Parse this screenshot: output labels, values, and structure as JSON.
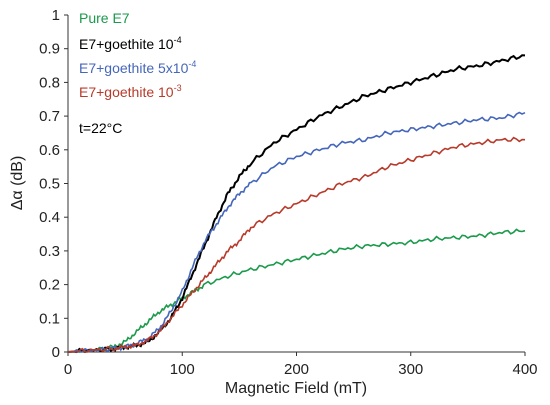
{
  "chart_data": {
    "type": "line",
    "title": "",
    "xlabel": "Magnetic Field (mT)",
    "ylabel": "Δα (dB)",
    "xlim": [
      0,
      400
    ],
    "ylim": [
      0,
      1
    ],
    "x_ticks": [
      "0",
      "100",
      "200",
      "300",
      "400"
    ],
    "y_ticks": [
      "0",
      "0.1",
      "0.2",
      "0.3",
      "0.4",
      "0.5",
      "0.6",
      "0.7",
      "0.8",
      "0.9",
      "1"
    ],
    "grid": false,
    "legend_position": "top-left",
    "annotation": "t=22°C",
    "series": [
      {
        "name": "Pure E7",
        "label_base": "Pure E7",
        "label_sup": "",
        "color": "#1a9a4a",
        "x": [
          0,
          20,
          40,
          50,
          60,
          70,
          80,
          90,
          100,
          110,
          120,
          140,
          160,
          180,
          200,
          220,
          240,
          260,
          280,
          300,
          320,
          340,
          360,
          380,
          400
        ],
        "y": [
          0.0,
          0.005,
          0.015,
          0.03,
          0.06,
          0.09,
          0.12,
          0.14,
          0.16,
          0.18,
          0.2,
          0.225,
          0.245,
          0.26,
          0.275,
          0.29,
          0.305,
          0.315,
          0.32,
          0.325,
          0.335,
          0.34,
          0.345,
          0.355,
          0.36
        ]
      },
      {
        "name": "E7+goethite 10-4",
        "label_base": "E7+goethite 10",
        "label_sup": "-4",
        "color": "#000000",
        "x": [
          0,
          20,
          40,
          50,
          60,
          70,
          80,
          90,
          100,
          110,
          120,
          130,
          140,
          150,
          160,
          180,
          200,
          220,
          240,
          260,
          280,
          300,
          320,
          340,
          360,
          380,
          400
        ],
        "y": [
          0.0,
          0.005,
          0.01,
          0.015,
          0.02,
          0.03,
          0.06,
          0.1,
          0.16,
          0.24,
          0.32,
          0.4,
          0.47,
          0.52,
          0.56,
          0.62,
          0.66,
          0.7,
          0.73,
          0.76,
          0.78,
          0.8,
          0.82,
          0.84,
          0.85,
          0.865,
          0.88
        ]
      },
      {
        "name": "E7+goethite 5x10-4",
        "label_base": "E7+goethite 5x10",
        "label_sup": "-4",
        "color": "#4466bb",
        "x": [
          0,
          20,
          40,
          50,
          60,
          70,
          80,
          90,
          100,
          110,
          120,
          130,
          140,
          150,
          160,
          180,
          200,
          220,
          240,
          260,
          280,
          300,
          320,
          340,
          360,
          380,
          400
        ],
        "y": [
          0.0,
          0.005,
          0.01,
          0.015,
          0.025,
          0.04,
          0.07,
          0.12,
          0.18,
          0.26,
          0.33,
          0.38,
          0.43,
          0.47,
          0.5,
          0.55,
          0.58,
          0.6,
          0.62,
          0.63,
          0.65,
          0.66,
          0.67,
          0.68,
          0.69,
          0.695,
          0.71
        ]
      },
      {
        "name": "E7+goethite 10-3",
        "label_base": "E7+goethite 10",
        "label_sup": "-3",
        "color": "#b83a2a",
        "x": [
          0,
          20,
          40,
          50,
          60,
          70,
          80,
          90,
          100,
          110,
          120,
          130,
          140,
          150,
          160,
          180,
          200,
          220,
          240,
          260,
          280,
          300,
          320,
          340,
          360,
          380,
          400
        ],
        "y": [
          0.0,
          0.005,
          0.01,
          0.015,
          0.02,
          0.035,
          0.06,
          0.1,
          0.14,
          0.18,
          0.22,
          0.26,
          0.3,
          0.33,
          0.37,
          0.41,
          0.44,
          0.47,
          0.5,
          0.52,
          0.55,
          0.57,
          0.59,
          0.61,
          0.62,
          0.63,
          0.63
        ]
      }
    ]
  }
}
